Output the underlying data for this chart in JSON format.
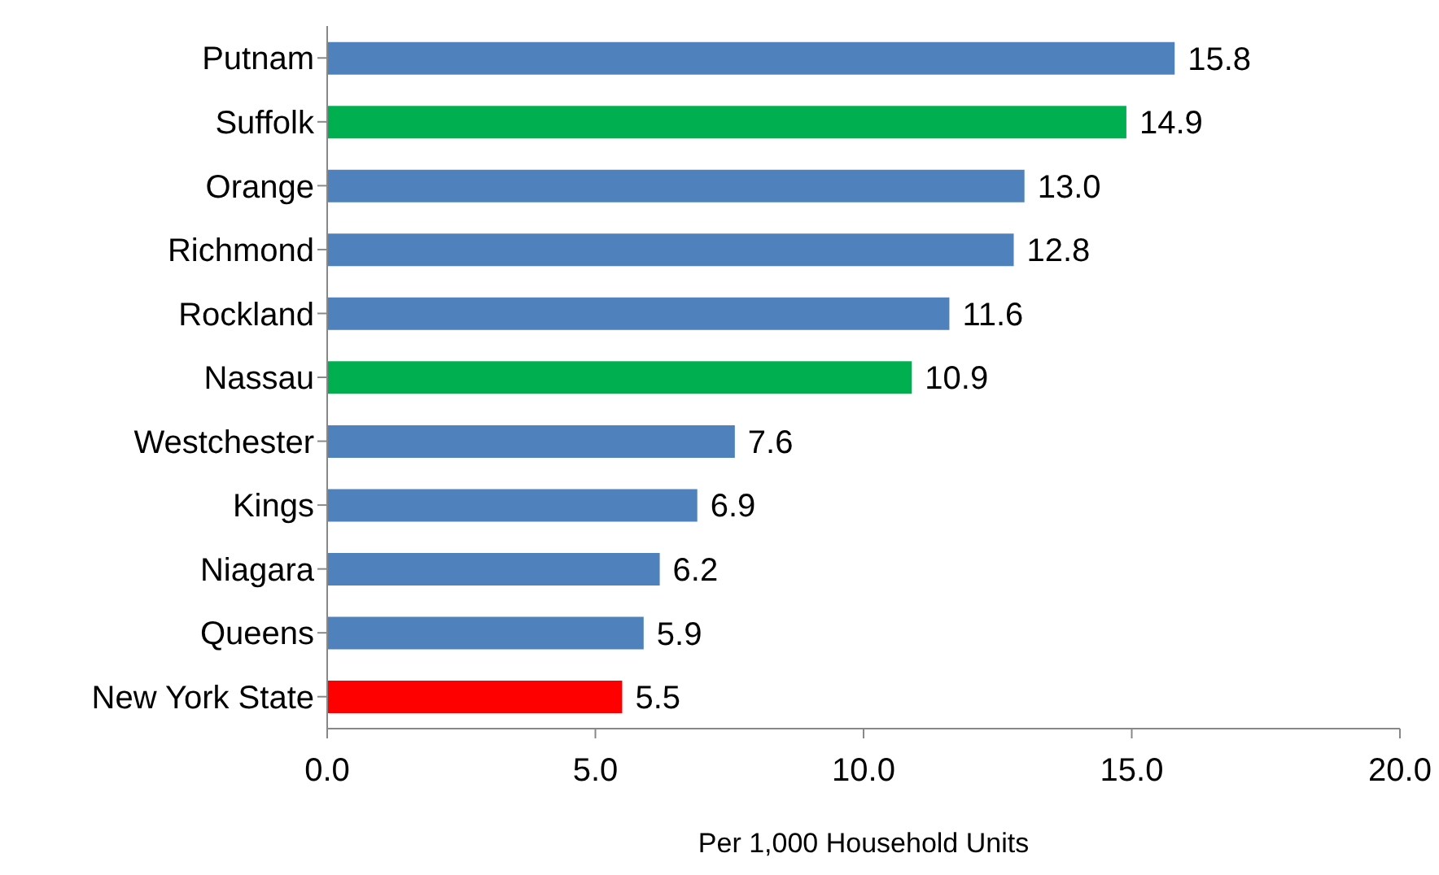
{
  "chart_data": {
    "type": "bar",
    "orientation": "horizontal",
    "xlabel": "Per 1,000 Household Units",
    "categories": [
      "Putnam",
      "Suffolk",
      "Orange",
      "Richmond",
      "Rockland",
      "Nassau",
      "Westchester",
      "Kings",
      "Niagara",
      "Queens",
      "New York State"
    ],
    "values": [
      15.8,
      14.9,
      13.0,
      12.8,
      11.6,
      10.9,
      7.6,
      6.9,
      6.2,
      5.9,
      5.5
    ],
    "colors": [
      "#4f81bd",
      "#00b050",
      "#4f81bd",
      "#4f81bd",
      "#4f81bd",
      "#00b050",
      "#4f81bd",
      "#4f81bd",
      "#4f81bd",
      "#4f81bd",
      "#ff0000"
    ],
    "value_labels": [
      "15.8",
      "14.9",
      "13.0",
      "12.8",
      "11.6",
      "10.9",
      "7.6",
      "6.9",
      "6.2",
      "5.9",
      "5.5"
    ],
    "xlim": [
      0,
      20
    ],
    "xticks": [
      {
        "value": 0,
        "label": "0.0"
      },
      {
        "value": 5,
        "label": "5.0"
      },
      {
        "value": 10,
        "label": "10.0"
      },
      {
        "value": 15,
        "label": "15.0"
      },
      {
        "value": 20,
        "label": "20.0"
      }
    ],
    "grid": false,
    "legend": false
  }
}
